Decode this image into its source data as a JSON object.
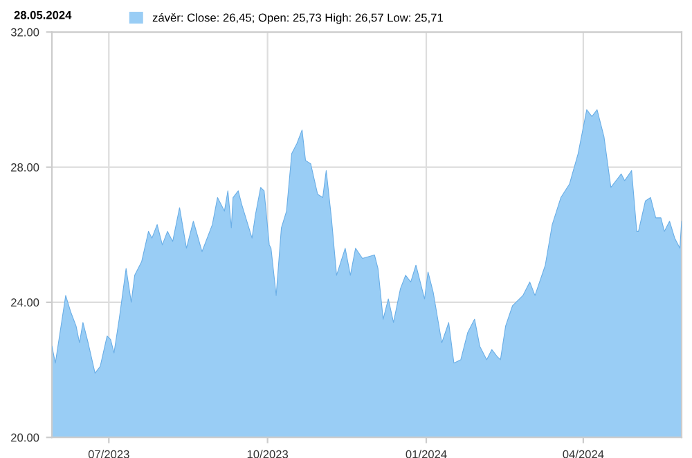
{
  "chart_data": {
    "type": "area",
    "annotations": [
      "28.05.2024"
    ],
    "x": [
      "2023-05-29",
      "2023-05-31",
      "2023-06-03",
      "2023-06-06",
      "2023-06-09",
      "2023-06-12",
      "2023-06-14",
      "2023-06-16",
      "2023-06-19",
      "2023-06-23",
      "2023-06-26",
      "2023-06-30",
      "2023-07-02",
      "2023-07-04",
      "2023-07-07",
      "2023-07-11",
      "2023-07-14",
      "2023-07-16",
      "2023-07-20",
      "2023-07-24",
      "2023-07-26",
      "2023-07-29",
      "2023-08-01",
      "2023-08-04",
      "2023-08-07",
      "2023-08-11",
      "2023-08-15",
      "2023-08-19",
      "2023-08-24",
      "2023-08-30",
      "2023-09-02",
      "2023-09-06",
      "2023-09-08",
      "2023-09-10",
      "2023-09-11",
      "2023-09-14",
      "2023-09-16",
      "2023-09-22",
      "2023-09-24",
      "2023-09-27",
      "2023-09-29",
      "2023-10-02",
      "2023-10-03",
      "2023-10-06",
      "2023-10-09",
      "2023-10-12",
      "2023-10-15",
      "2023-10-18",
      "2023-10-21",
      "2023-10-23",
      "2023-10-26",
      "2023-10-30",
      "2023-11-02",
      "2023-11-04",
      "2023-11-07",
      "2023-11-10",
      "2023-11-15",
      "2023-11-18",
      "2023-11-21",
      "2023-11-25",
      "2023-12-02",
      "2023-12-04",
      "2023-12-07",
      "2023-12-10",
      "2023-12-13",
      "2023-12-17",
      "2023-12-20",
      "2023-12-23",
      "2023-12-26",
      "2023-12-31",
      "2024-01-02",
      "2024-01-05",
      "2024-01-10",
      "2024-01-14",
      "2024-01-17",
      "2024-01-21",
      "2024-01-25",
      "2024-01-29",
      "2024-02-01",
      "2024-02-05",
      "2024-02-08",
      "2024-02-11",
      "2024-02-13",
      "2024-02-16",
      "2024-02-20",
      "2024-02-26",
      "2024-03-01",
      "2024-03-04",
      "2024-03-10",
      "2024-03-14",
      "2024-03-19",
      "2024-03-24",
      "2024-03-29",
      "2024-04-03",
      "2024-04-06",
      "2024-04-09",
      "2024-04-13",
      "2024-04-17",
      "2024-04-23",
      "2024-04-25",
      "2024-04-29",
      "2024-05-02",
      "2024-05-03",
      "2024-05-07",
      "2024-05-10",
      "2024-05-13",
      "2024-05-16",
      "2024-05-18",
      "2024-05-21",
      "2024-05-24",
      "2024-05-27",
      "2024-05-28"
    ],
    "series": [
      {
        "name": "závěr: Close: 26,45; Open: 25,73 High: 26,57 Low: 25,71",
        "color": "#99cdf5",
        "values": [
          22.7,
          22.2,
          23.2,
          24.2,
          23.7,
          23.3,
          22.8,
          23.4,
          22.8,
          21.9,
          22.1,
          23.0,
          22.9,
          22.5,
          23.5,
          25.0,
          24.0,
          24.8,
          25.2,
          26.1,
          25.9,
          26.3,
          25.7,
          26.1,
          25.8,
          26.8,
          25.6,
          26.4,
          25.5,
          26.3,
          27.1,
          26.7,
          27.3,
          26.2,
          27.1,
          27.3,
          26.9,
          25.9,
          26.6,
          27.4,
          27.3,
          25.7,
          25.6,
          24.2,
          26.2,
          26.7,
          28.4,
          28.7,
          29.1,
          28.2,
          28.1,
          27.2,
          27.1,
          27.9,
          26.5,
          24.8,
          25.6,
          24.8,
          25.6,
          25.3,
          25.4,
          25.0,
          23.5,
          24.1,
          23.4,
          24.4,
          24.8,
          24.6,
          25.1,
          24.1,
          24.9,
          24.3,
          22.8,
          23.4,
          22.2,
          22.3,
          23.1,
          23.5,
          22.7,
          22.3,
          22.6,
          22.4,
          22.3,
          23.3,
          23.9,
          24.2,
          24.6,
          24.2,
          25.1,
          26.3,
          27.1,
          27.5,
          28.4,
          29.7,
          29.5,
          29.7,
          28.9,
          27.4,
          27.8,
          27.6,
          27.9,
          26.1,
          26.1,
          27.0,
          27.1,
          26.5,
          26.5,
          26.1,
          26.4,
          25.9,
          25.6,
          26.4
        ]
      }
    ],
    "xlim": [
      "2023-05-29",
      "2024-05-28"
    ],
    "xticks": [
      {
        "value": "2023-07-01",
        "label": "07/2023"
      },
      {
        "value": "2023-10-01",
        "label": "10/2023"
      },
      {
        "value": "2024-01-01",
        "label": "01/2024"
      },
      {
        "value": "2024-04-01",
        "label": "04/2024"
      }
    ],
    "ylim": [
      20,
      32
    ],
    "yticks": [
      {
        "value": 20,
        "label": "20.00"
      },
      {
        "value": 24,
        "label": "24.00"
      },
      {
        "value": 28,
        "label": "28.00"
      },
      {
        "value": 32,
        "label": "32.00"
      }
    ],
    "grid": true,
    "legend": "top left"
  }
}
